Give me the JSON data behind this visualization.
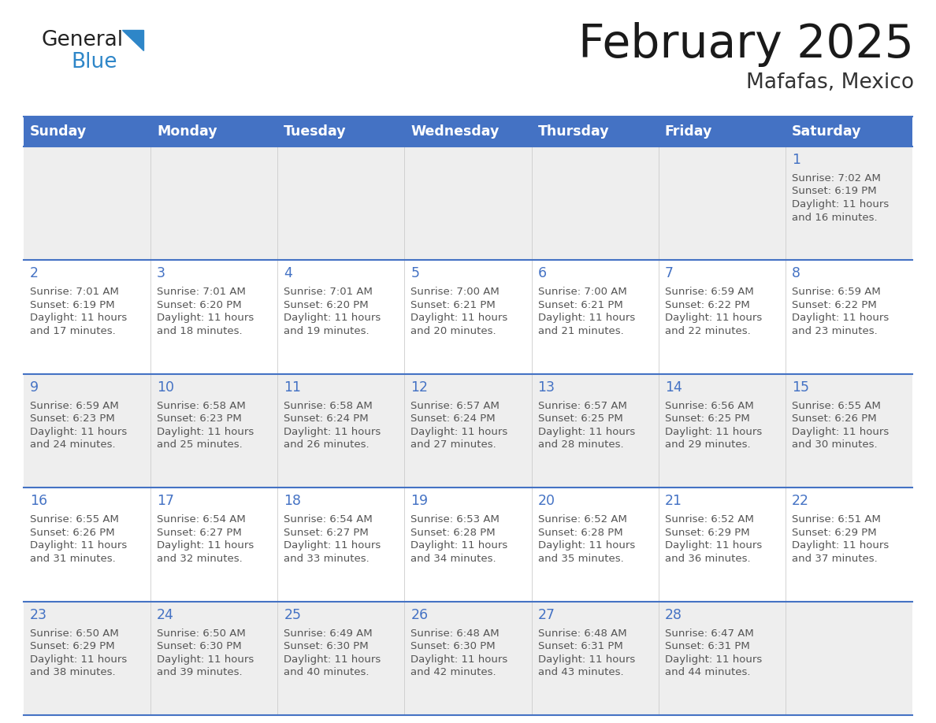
{
  "title": "February 2025",
  "subtitle": "Mafafas, Mexico",
  "header_color": "#4472C4",
  "header_text_color": "#FFFFFF",
  "day_headers": [
    "Sunday",
    "Monday",
    "Tuesday",
    "Wednesday",
    "Thursday",
    "Friday",
    "Saturday"
  ],
  "background_color": "#FFFFFF",
  "row0_color": "#EEEEEE",
  "row1_color": "#FFFFFF",
  "cell_border_color": "#4472C4",
  "day_number_color": "#4472C4",
  "info_text_color": "#555555",
  "logo_general_color": "#222222",
  "logo_blue_color": "#2E86C8",
  "calendar_data": [
    [
      null,
      null,
      null,
      null,
      null,
      null,
      {
        "day": "1",
        "sunrise": "7:02 AM",
        "sunset": "6:19 PM",
        "daylight_a": "11 hours",
        "daylight_b": "and 16 minutes."
      }
    ],
    [
      {
        "day": "2",
        "sunrise": "7:01 AM",
        "sunset": "6:19 PM",
        "daylight_a": "11 hours",
        "daylight_b": "and 17 minutes."
      },
      {
        "day": "3",
        "sunrise": "7:01 AM",
        "sunset": "6:20 PM",
        "daylight_a": "11 hours",
        "daylight_b": "and 18 minutes."
      },
      {
        "day": "4",
        "sunrise": "7:01 AM",
        "sunset": "6:20 PM",
        "daylight_a": "11 hours",
        "daylight_b": "and 19 minutes."
      },
      {
        "day": "5",
        "sunrise": "7:00 AM",
        "sunset": "6:21 PM",
        "daylight_a": "11 hours",
        "daylight_b": "and 20 minutes."
      },
      {
        "day": "6",
        "sunrise": "7:00 AM",
        "sunset": "6:21 PM",
        "daylight_a": "11 hours",
        "daylight_b": "and 21 minutes."
      },
      {
        "day": "7",
        "sunrise": "6:59 AM",
        "sunset": "6:22 PM",
        "daylight_a": "11 hours",
        "daylight_b": "and 22 minutes."
      },
      {
        "day": "8",
        "sunrise": "6:59 AM",
        "sunset": "6:22 PM",
        "daylight_a": "11 hours",
        "daylight_b": "and 23 minutes."
      }
    ],
    [
      {
        "day": "9",
        "sunrise": "6:59 AM",
        "sunset": "6:23 PM",
        "daylight_a": "11 hours",
        "daylight_b": "and 24 minutes."
      },
      {
        "day": "10",
        "sunrise": "6:58 AM",
        "sunset": "6:23 PM",
        "daylight_a": "11 hours",
        "daylight_b": "and 25 minutes."
      },
      {
        "day": "11",
        "sunrise": "6:58 AM",
        "sunset": "6:24 PM",
        "daylight_a": "11 hours",
        "daylight_b": "and 26 minutes."
      },
      {
        "day": "12",
        "sunrise": "6:57 AM",
        "sunset": "6:24 PM",
        "daylight_a": "11 hours",
        "daylight_b": "and 27 minutes."
      },
      {
        "day": "13",
        "sunrise": "6:57 AM",
        "sunset": "6:25 PM",
        "daylight_a": "11 hours",
        "daylight_b": "and 28 minutes."
      },
      {
        "day": "14",
        "sunrise": "6:56 AM",
        "sunset": "6:25 PM",
        "daylight_a": "11 hours",
        "daylight_b": "and 29 minutes."
      },
      {
        "day": "15",
        "sunrise": "6:55 AM",
        "sunset": "6:26 PM",
        "daylight_a": "11 hours",
        "daylight_b": "and 30 minutes."
      }
    ],
    [
      {
        "day": "16",
        "sunrise": "6:55 AM",
        "sunset": "6:26 PM",
        "daylight_a": "11 hours",
        "daylight_b": "and 31 minutes."
      },
      {
        "day": "17",
        "sunrise": "6:54 AM",
        "sunset": "6:27 PM",
        "daylight_a": "11 hours",
        "daylight_b": "and 32 minutes."
      },
      {
        "day": "18",
        "sunrise": "6:54 AM",
        "sunset": "6:27 PM",
        "daylight_a": "11 hours",
        "daylight_b": "and 33 minutes."
      },
      {
        "day": "19",
        "sunrise": "6:53 AM",
        "sunset": "6:28 PM",
        "daylight_a": "11 hours",
        "daylight_b": "and 34 minutes."
      },
      {
        "day": "20",
        "sunrise": "6:52 AM",
        "sunset": "6:28 PM",
        "daylight_a": "11 hours",
        "daylight_b": "and 35 minutes."
      },
      {
        "day": "21",
        "sunrise": "6:52 AM",
        "sunset": "6:29 PM",
        "daylight_a": "11 hours",
        "daylight_b": "and 36 minutes."
      },
      {
        "day": "22",
        "sunrise": "6:51 AM",
        "sunset": "6:29 PM",
        "daylight_a": "11 hours",
        "daylight_b": "and 37 minutes."
      }
    ],
    [
      {
        "day": "23",
        "sunrise": "6:50 AM",
        "sunset": "6:29 PM",
        "daylight_a": "11 hours",
        "daylight_b": "and 38 minutes."
      },
      {
        "day": "24",
        "sunrise": "6:50 AM",
        "sunset": "6:30 PM",
        "daylight_a": "11 hours",
        "daylight_b": "and 39 minutes."
      },
      {
        "day": "25",
        "sunrise": "6:49 AM",
        "sunset": "6:30 PM",
        "daylight_a": "11 hours",
        "daylight_b": "and 40 minutes."
      },
      {
        "day": "26",
        "sunrise": "6:48 AM",
        "sunset": "6:30 PM",
        "daylight_a": "11 hours",
        "daylight_b": "and 42 minutes."
      },
      {
        "day": "27",
        "sunrise": "6:48 AM",
        "sunset": "6:31 PM",
        "daylight_a": "11 hours",
        "daylight_b": "and 43 minutes."
      },
      {
        "day": "28",
        "sunrise": "6:47 AM",
        "sunset": "6:31 PM",
        "daylight_a": "11 hours",
        "daylight_b": "and 44 minutes."
      },
      null
    ]
  ],
  "fig_width": 11.88,
  "fig_height": 9.18,
  "dpi": 100
}
